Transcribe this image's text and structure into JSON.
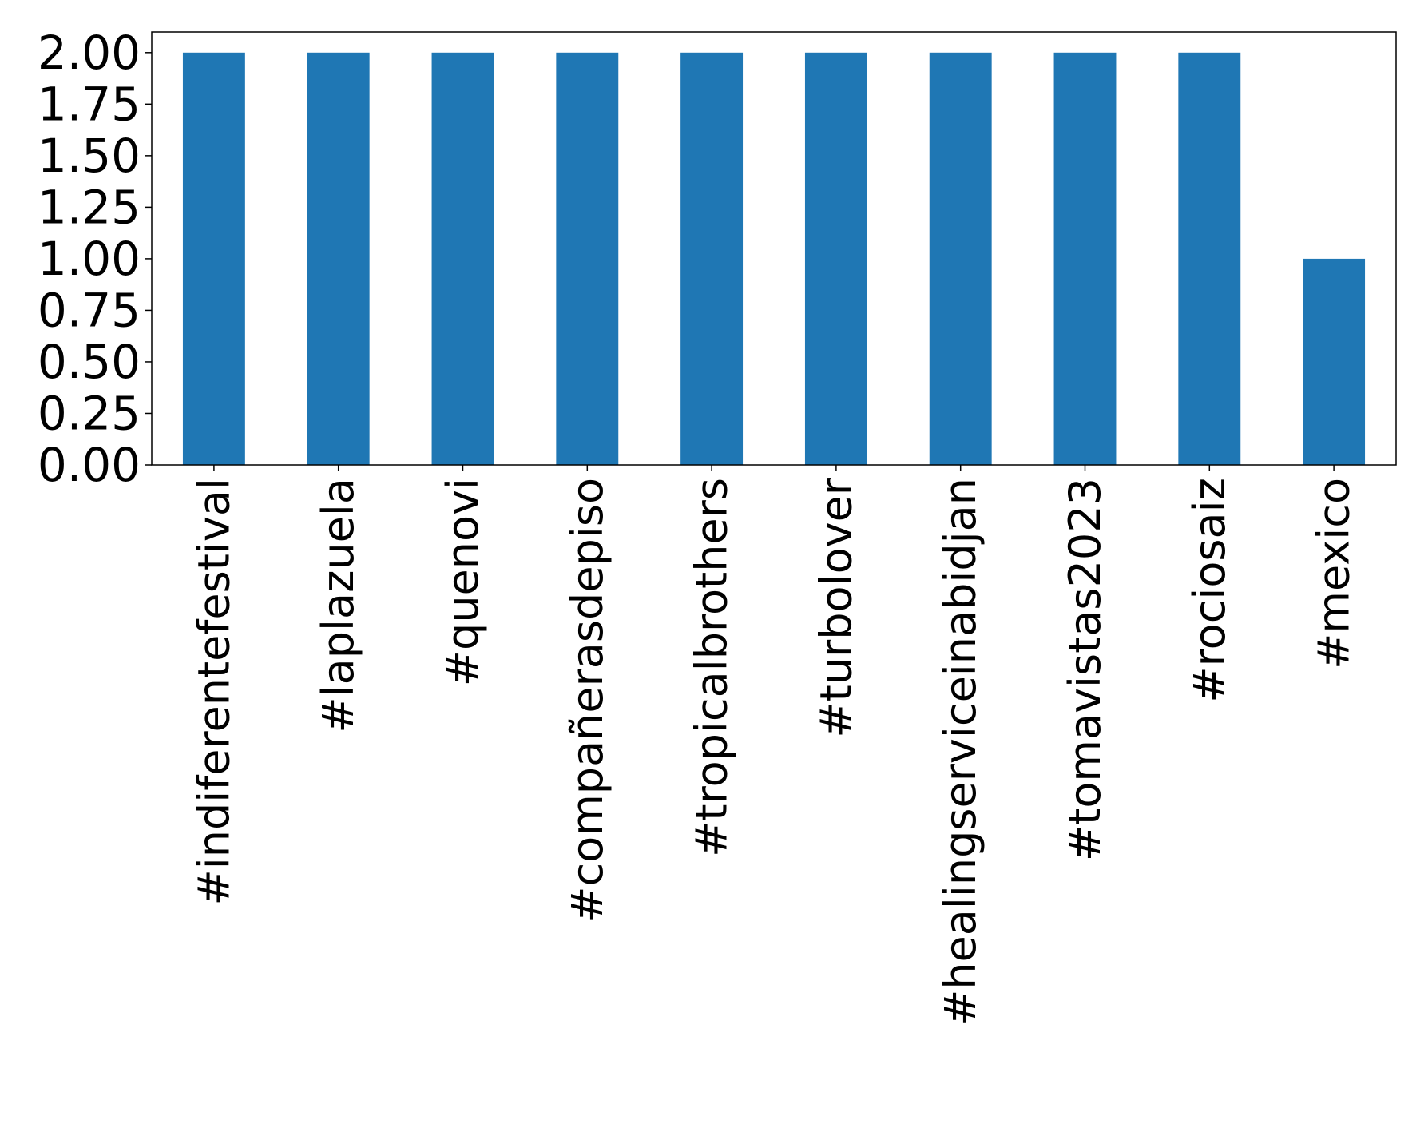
{
  "chart_data": {
    "type": "bar",
    "categories": [
      "#indiferentefestival",
      "#laplazuela",
      "#quenovi",
      "#compañerasdepiso",
      "#tropicalbrothers",
      "#turbolover",
      "#healingserviceinabidjan",
      "#tomavistas2023",
      "#rociosaiz",
      "#mexico"
    ],
    "values": [
      2,
      2,
      2,
      2,
      2,
      2,
      2,
      2,
      2,
      1
    ],
    "yticks": [
      "0.00",
      "0.25",
      "0.50",
      "0.75",
      "1.00",
      "1.25",
      "1.50",
      "1.75",
      "2.00"
    ],
    "ylim": [
      0,
      2.1
    ],
    "title": "",
    "xlabel": "",
    "ylabel": "",
    "grid": false,
    "bar_color": "#1f77b4"
  }
}
